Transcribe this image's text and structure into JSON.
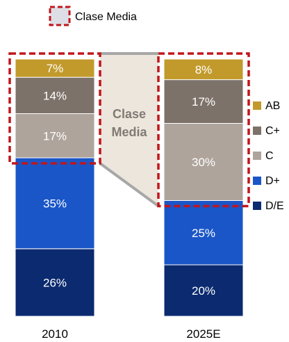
{
  "chart_data": {
    "type": "bar",
    "stacked": true,
    "categories": [
      "2010",
      "2025E"
    ],
    "series": [
      {
        "name": "D/E",
        "color": "#0b2a6f",
        "values": [
          26,
          20
        ],
        "labels": [
          "26%",
          "20%"
        ]
      },
      {
        "name": "D+",
        "color": "#1a56c8",
        "values": [
          35,
          25
        ],
        "labels": [
          "35%",
          "25%"
        ]
      },
      {
        "name": "C",
        "color": "#aea49c",
        "values": [
          17,
          30
        ],
        "labels": [
          "17%",
          "30%"
        ]
      },
      {
        "name": "C+",
        "color": "#7d726a",
        "values": [
          14,
          17
        ],
        "labels": [
          "14%",
          "17%"
        ]
      },
      {
        "name": "AB",
        "color": "#c29a2c",
        "values": [
          7,
          8
        ],
        "labels": [
          "7%",
          "8%"
        ]
      }
    ],
    "ylim": [
      0,
      100
    ],
    "legend_position": "right",
    "highlight": {
      "legend_label": "Clase Media",
      "band_label_lines": [
        "Clase",
        "Media"
      ],
      "series": [
        "C",
        "C+",
        "AB"
      ],
      "border_color": "#c0161c",
      "fill_color": "#dedfe6",
      "band_color": "#ece6dc"
    }
  }
}
